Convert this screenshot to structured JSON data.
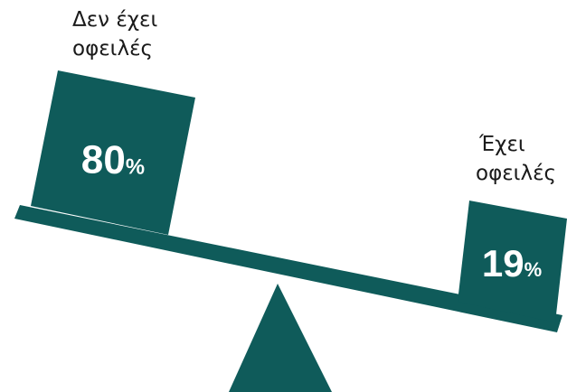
{
  "colors": {
    "block": "#0f5b5a",
    "text_on_block": "#ffffff",
    "caption": "#1a1a1a"
  },
  "left_block": {
    "caption_line1": "Δεν έχει",
    "caption_line2": "οφειλές",
    "value": 80,
    "value_text": "80",
    "unit": "%"
  },
  "right_block": {
    "caption_line1": "Έχει",
    "caption_line2": "οφειλές",
    "value": 19,
    "value_text": "19",
    "unit": "%"
  }
}
